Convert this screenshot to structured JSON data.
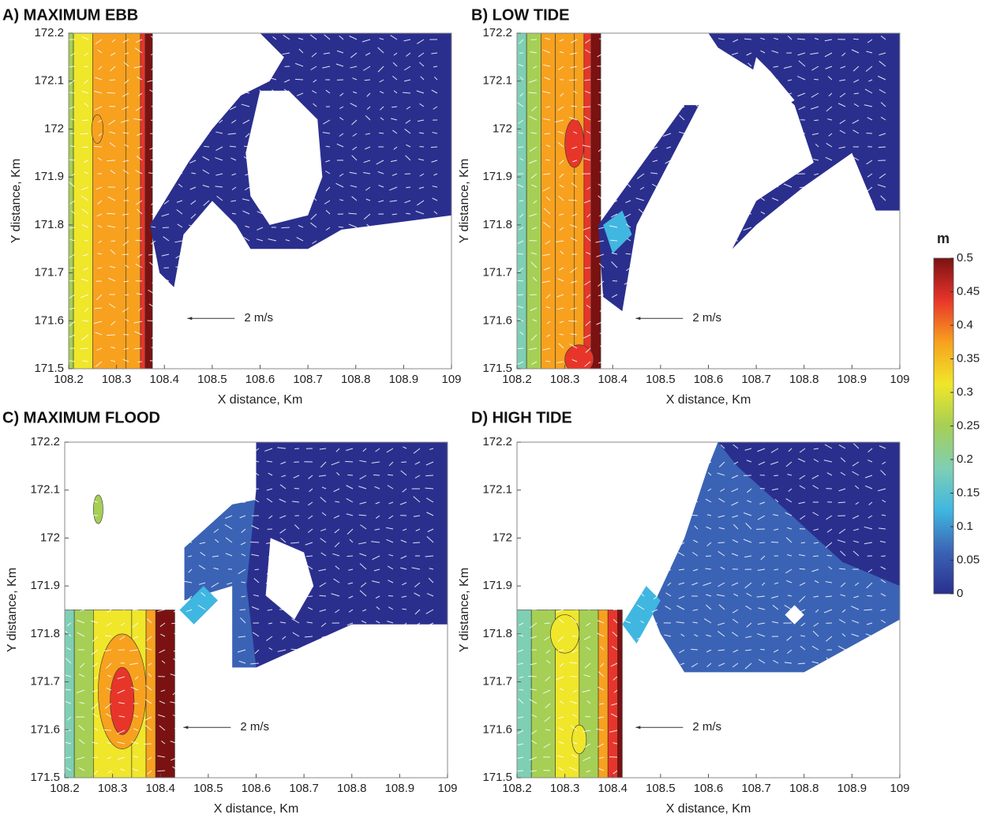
{
  "chart_data": [
    {
      "type": "contour",
      "title": "A) MAXIMUM EBB",
      "xlabel": "X distance, Km",
      "ylabel": "Y distance, Km",
      "xlim": [
        108.2,
        109
      ],
      "ylim": [
        171.5,
        172.2
      ],
      "xticks": [
        108.2,
        108.3,
        108.4,
        108.5,
        108.6,
        108.7,
        108.8,
        108.9,
        109
      ],
      "yticks": [
        171.5,
        171.6,
        171.7,
        171.8,
        171.9,
        172,
        172.1,
        172.2
      ],
      "annotation": "2 m/s"
    },
    {
      "type": "contour",
      "title": "B) LOW TIDE",
      "xlabel": "X distance, Km",
      "ylabel": "Y distance, Km",
      "xlim": [
        108.2,
        109
      ],
      "ylim": [
        171.5,
        172.2
      ],
      "xticks": [
        108.2,
        108.3,
        108.4,
        108.5,
        108.6,
        108.7,
        108.8,
        108.9,
        109
      ],
      "yticks": [
        171.5,
        171.6,
        171.7,
        171.8,
        171.9,
        172,
        172.1,
        172.2
      ],
      "annotation": "2 m/s"
    },
    {
      "type": "contour",
      "title": "C) MAXIMUM FLOOD",
      "xlabel": "X distance, Km",
      "ylabel": "Y distance, Km",
      "xlim": [
        108.2,
        109
      ],
      "ylim": [
        171.5,
        172.2
      ],
      "xticks": [
        108.2,
        108.3,
        108.4,
        108.5,
        108.6,
        108.7,
        108.8,
        108.9,
        109
      ],
      "yticks": [
        171.5,
        171.6,
        171.7,
        171.8,
        171.9,
        172,
        172.1,
        172.2
      ],
      "annotation": "2 m/s"
    },
    {
      "type": "contour",
      "title": "D) HIGH TIDE",
      "xlabel": "X distance, Km",
      "ylabel": "Y distance, Km",
      "xlim": [
        108.2,
        109
      ],
      "ylim": [
        171.5,
        172.2
      ],
      "xticks": [
        108.2,
        108.3,
        108.4,
        108.5,
        108.6,
        108.7,
        108.8,
        108.9,
        109
      ],
      "yticks": [
        171.5,
        171.6,
        171.7,
        171.8,
        171.9,
        172,
        172.1,
        172.2
      ],
      "annotation": "2 m/s"
    }
  ],
  "colorbar": {
    "label": "m",
    "lim": [
      0,
      0.5
    ],
    "ticks": [
      0,
      0.05,
      0.1,
      0.15,
      0.2,
      0.25,
      0.3,
      0.35,
      0.4,
      0.45,
      0.5
    ],
    "colors": [
      "#2a2f8e",
      "#3b63b5",
      "#40b7e0",
      "#7fcfb4",
      "#a6cf55",
      "#f0e62a",
      "#f7a11f",
      "#e8352a",
      "#7a1212"
    ]
  }
}
